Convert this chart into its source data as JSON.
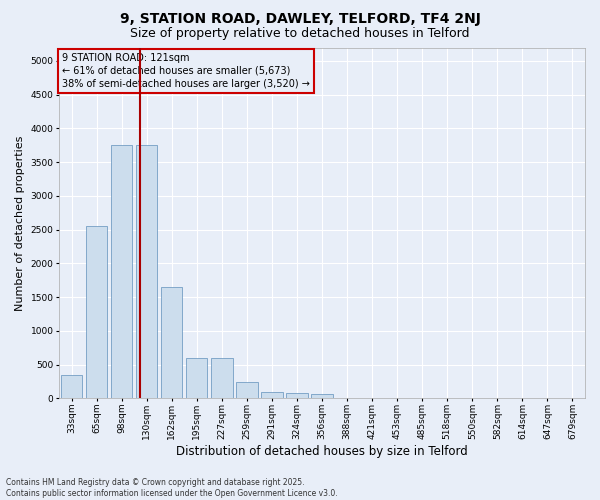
{
  "title1": "9, STATION ROAD, DAWLEY, TELFORD, TF4 2NJ",
  "title2": "Size of property relative to detached houses in Telford",
  "xlabel": "Distribution of detached houses by size in Telford",
  "ylabel": "Number of detached properties",
  "categories": [
    "33sqm",
    "65sqm",
    "98sqm",
    "130sqm",
    "162sqm",
    "195sqm",
    "227sqm",
    "259sqm",
    "291sqm",
    "324sqm",
    "356sqm",
    "388sqm",
    "421sqm",
    "453sqm",
    "485sqm",
    "518sqm",
    "550sqm",
    "582sqm",
    "614sqm",
    "647sqm",
    "679sqm"
  ],
  "values": [
    350,
    2550,
    3750,
    3750,
    1650,
    600,
    600,
    240,
    100,
    80,
    60,
    5,
    3,
    2,
    1,
    1,
    0,
    0,
    0,
    0,
    0
  ],
  "bar_color": "#ccdded",
  "bar_edge_color": "#6090bb",
  "vline_color": "#aa0000",
  "vline_pos": 2.72,
  "annotation_text": "9 STATION ROAD: 121sqm\n← 61% of detached houses are smaller (5,673)\n38% of semi-detached houses are larger (3,520) →",
  "annotation_box_edgecolor": "#cc0000",
  "ylim": [
    0,
    5200
  ],
  "yticks": [
    0,
    500,
    1000,
    1500,
    2000,
    2500,
    3000,
    3500,
    4000,
    4500,
    5000
  ],
  "background_color": "#e8eef8",
  "grid_color": "#ffffff",
  "footer_line1": "Contains HM Land Registry data © Crown copyright and database right 2025.",
  "footer_line2": "Contains public sector information licensed under the Open Government Licence v3.0.",
  "title1_fontsize": 10,
  "title2_fontsize": 9,
  "tick_fontsize": 6.5,
  "ylabel_fontsize": 8,
  "xlabel_fontsize": 8.5,
  "footer_fontsize": 5.5,
  "annotation_fontsize": 7
}
